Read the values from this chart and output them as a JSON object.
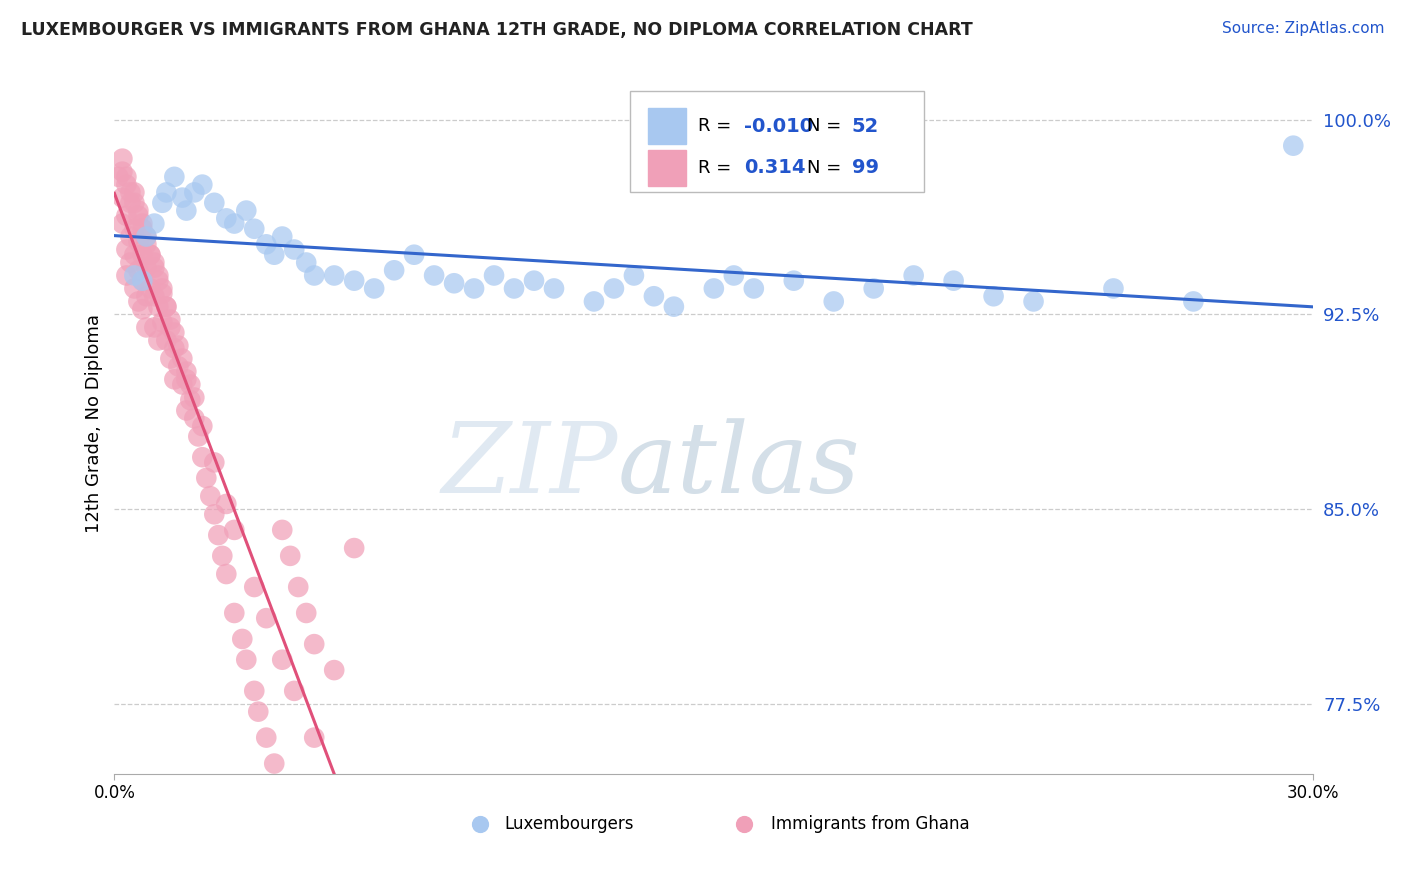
{
  "title": "LUXEMBOURGER VS IMMIGRANTS FROM GHANA 12TH GRADE, NO DIPLOMA CORRELATION CHART",
  "source": "Source: ZipAtlas.com",
  "ylabel": "12th Grade, No Diploma",
  "x_min": 0.0,
  "x_max": 0.3,
  "y_min": 0.748,
  "y_max": 1.018,
  "yticks": [
    0.775,
    0.85,
    0.925,
    1.0
  ],
  "ytick_labels": [
    "77.5%",
    "85.0%",
    "92.5%",
    "100.0%"
  ],
  "lux_color": "#a8c8f0",
  "ghana_color": "#f0a0b8",
  "lux_line_color": "#3366cc",
  "ghana_line_color": "#e0507a",
  "lux_R": -0.01,
  "lux_N": 52,
  "ghana_R": 0.314,
  "ghana_N": 99,
  "legend_R_color": "#2255cc",
  "lux_scatter_x": [
    0.005,
    0.007,
    0.008,
    0.01,
    0.012,
    0.013,
    0.015,
    0.017,
    0.018,
    0.02,
    0.022,
    0.025,
    0.028,
    0.03,
    0.033,
    0.035,
    0.038,
    0.04,
    0.042,
    0.045,
    0.048,
    0.05,
    0.055,
    0.06,
    0.065,
    0.07,
    0.075,
    0.08,
    0.085,
    0.09,
    0.095,
    0.1,
    0.105,
    0.11,
    0.12,
    0.125,
    0.13,
    0.135,
    0.14,
    0.15,
    0.155,
    0.16,
    0.17,
    0.18,
    0.19,
    0.2,
    0.21,
    0.22,
    0.23,
    0.25,
    0.27,
    0.295
  ],
  "lux_scatter_y": [
    0.94,
    0.938,
    0.955,
    0.96,
    0.968,
    0.972,
    0.978,
    0.97,
    0.965,
    0.972,
    0.975,
    0.968,
    0.962,
    0.96,
    0.965,
    0.958,
    0.952,
    0.948,
    0.955,
    0.95,
    0.945,
    0.94,
    0.94,
    0.938,
    0.935,
    0.942,
    0.948,
    0.94,
    0.937,
    0.935,
    0.94,
    0.935,
    0.938,
    0.935,
    0.93,
    0.935,
    0.94,
    0.932,
    0.928,
    0.935,
    0.94,
    0.935,
    0.938,
    0.93,
    0.935,
    0.94,
    0.938,
    0.932,
    0.93,
    0.935,
    0.93,
    0.99
  ],
  "ghana_scatter_x": [
    0.001,
    0.002,
    0.002,
    0.002,
    0.003,
    0.003,
    0.003,
    0.003,
    0.004,
    0.004,
    0.004,
    0.005,
    0.005,
    0.005,
    0.005,
    0.006,
    0.006,
    0.006,
    0.006,
    0.007,
    0.007,
    0.007,
    0.007,
    0.008,
    0.008,
    0.008,
    0.008,
    0.009,
    0.009,
    0.01,
    0.01,
    0.01,
    0.011,
    0.011,
    0.011,
    0.012,
    0.012,
    0.013,
    0.013,
    0.014,
    0.014,
    0.015,
    0.015,
    0.016,
    0.017,
    0.018,
    0.018,
    0.019,
    0.02,
    0.021,
    0.022,
    0.023,
    0.024,
    0.025,
    0.026,
    0.027,
    0.028,
    0.03,
    0.032,
    0.033,
    0.035,
    0.036,
    0.038,
    0.04,
    0.042,
    0.044,
    0.046,
    0.048,
    0.05,
    0.055,
    0.002,
    0.003,
    0.004,
    0.005,
    0.006,
    0.007,
    0.008,
    0.009,
    0.01,
    0.011,
    0.012,
    0.013,
    0.014,
    0.015,
    0.016,
    0.017,
    0.018,
    0.019,
    0.02,
    0.022,
    0.025,
    0.028,
    0.03,
    0.035,
    0.038,
    0.042,
    0.045,
    0.05,
    0.06
  ],
  "ghana_scatter_y": [
    0.978,
    0.98,
    0.97,
    0.96,
    0.975,
    0.963,
    0.95,
    0.94,
    0.968,
    0.955,
    0.945,
    0.972,
    0.958,
    0.948,
    0.935,
    0.965,
    0.953,
    0.942,
    0.93,
    0.96,
    0.948,
    0.938,
    0.927,
    0.955,
    0.943,
    0.932,
    0.92,
    0.948,
    0.935,
    0.945,
    0.932,
    0.92,
    0.94,
    0.928,
    0.915,
    0.935,
    0.922,
    0.928,
    0.915,
    0.92,
    0.908,
    0.912,
    0.9,
    0.905,
    0.898,
    0.9,
    0.888,
    0.892,
    0.885,
    0.878,
    0.87,
    0.862,
    0.855,
    0.848,
    0.84,
    0.832,
    0.825,
    0.81,
    0.8,
    0.792,
    0.78,
    0.772,
    0.762,
    0.752,
    0.842,
    0.832,
    0.82,
    0.81,
    0.798,
    0.788,
    0.985,
    0.978,
    0.972,
    0.968,
    0.963,
    0.958,
    0.952,
    0.948,
    0.943,
    0.938,
    0.933,
    0.928,
    0.923,
    0.918,
    0.913,
    0.908,
    0.903,
    0.898,
    0.893,
    0.882,
    0.868,
    0.852,
    0.842,
    0.82,
    0.808,
    0.792,
    0.78,
    0.762,
    0.835
  ]
}
